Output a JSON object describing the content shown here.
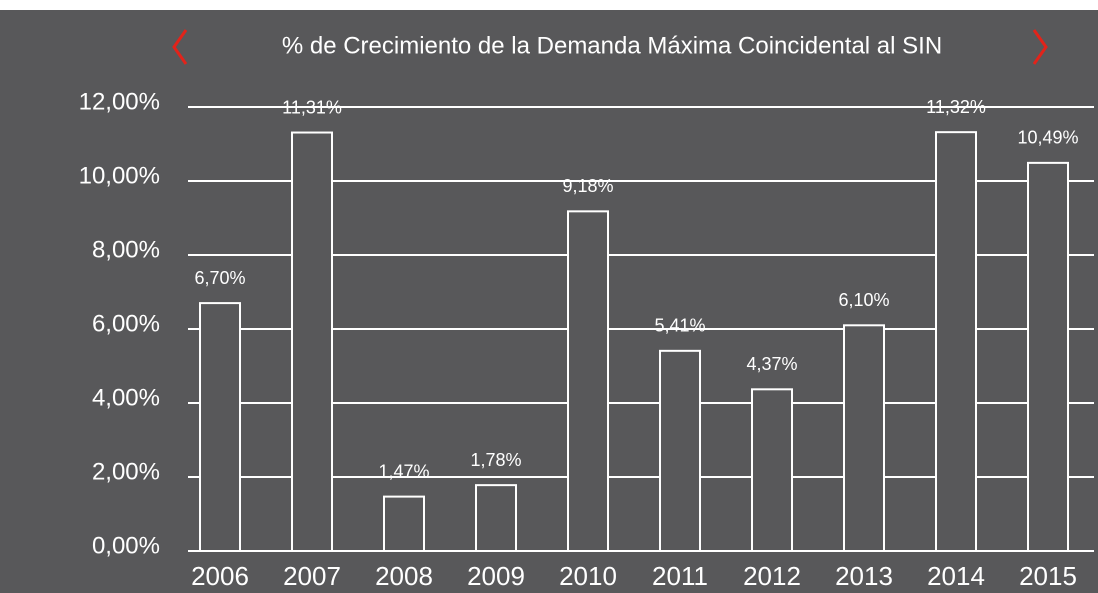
{
  "chart_data": {
    "type": "bar",
    "title": "% de Crecimiento de la Demanda Máxima Coincidental al SIN",
    "categories": [
      "2006",
      "2007",
      "2008",
      "2009",
      "2010",
      "2011",
      "2012",
      "2013",
      "2014",
      "2015"
    ],
    "values": [
      6.7,
      11.31,
      1.47,
      1.78,
      9.18,
      5.41,
      4.37,
      6.1,
      11.32,
      10.49
    ],
    "value_labels": [
      "6,70%",
      "11,31%",
      "1,47%",
      "1,78%",
      "9,18%",
      "5,41%",
      "4,37%",
      "6,10%",
      "11,32%",
      "10,49%"
    ],
    "color": "#58585a",
    "ylim": [
      0,
      12
    ],
    "yticks": [
      {
        "value": 0,
        "label": "0,00%"
      },
      {
        "value": 2,
        "label": "2,00%"
      },
      {
        "value": 4,
        "label": "4,00%"
      },
      {
        "value": 6,
        "label": "6,00%"
      },
      {
        "value": 8,
        "label": "8,00%"
      },
      {
        "value": 10,
        "label": "10,00%"
      },
      {
        "value": 12,
        "label": "12,00%"
      }
    ],
    "grid": true
  }
}
